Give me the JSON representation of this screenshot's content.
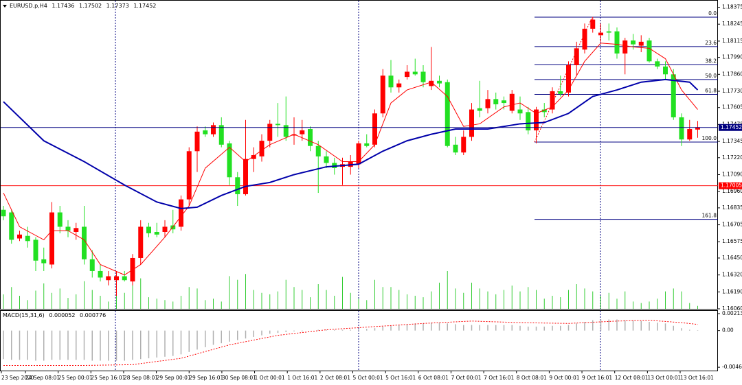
{
  "chart_data": {
    "type": "candlestick",
    "symbol": "EURUSD.p,H4",
    "bull_color": "#ff0000",
    "bear_color": "#22e022",
    "ylim": [
      1.1606,
      1.1842
    ],
    "yticks": [
      {
        "value": 1.18375,
        "label": "1.18375"
      },
      {
        "value": 1.18245,
        "label": "1.18245"
      },
      {
        "value": 1.18115,
        "label": "1.18115"
      },
      {
        "value": 1.1799,
        "label": "1.17990"
      },
      {
        "value": 1.1786,
        "label": "1.17860"
      },
      {
        "value": 1.1773,
        "label": "1.17730"
      },
      {
        "value": 1.17605,
        "label": "1.17605"
      },
      {
        "value": 1.17475,
        "label": "1.17475"
      },
      {
        "value": 1.17345,
        "label": "1.17345"
      },
      {
        "value": 1.1722,
        "label": "1.17220"
      },
      {
        "value": 1.1709,
        "label": "1.17090"
      },
      {
        "value": 1.1696,
        "label": "1.16960"
      },
      {
        "value": 1.16835,
        "label": "1.16835"
      },
      {
        "value": 1.16705,
        "label": "1.16705"
      },
      {
        "value": 1.16575,
        "label": "1.16575"
      },
      {
        "value": 1.1645,
        "label": "1.16450"
      },
      {
        "value": 1.1632,
        "label": "1.16320"
      },
      {
        "value": 1.1619,
        "label": "1.16190"
      },
      {
        "value": 1.1606,
        "label": "1.16060"
      }
    ],
    "open": [
      1.1682,
      1.168,
      1.166,
      1.1662,
      1.1659,
      1.1644,
      1.164,
      1.168,
      1.1669,
      1.1665,
      1.1669,
      1.1644,
      1.1635,
      1.1628,
      1.1628,
      1.1631,
      1.1627,
      1.1645,
      1.1669,
      1.1665,
      1.1665,
      1.167,
      1.1669,
      1.169,
      1.1727,
      1.1743,
      1.174,
      1.1747,
      1.1733,
      1.1707,
      1.1694,
      1.1721,
      1.1723,
      1.1735,
      1.1748,
      1.1747,
      1.1739,
      1.174,
      1.1744,
      1.1731,
      1.1723,
      1.1718,
      1.1715,
      1.1715,
      1.1717,
      1.1733,
      1.1732,
      1.1756,
      1.1785,
      1.1776,
      1.1784,
      1.1788,
      1.1788,
      1.1777,
      1.1781,
      1.178,
      1.1732,
      1.1726,
      1.1738,
      1.176,
      1.176,
      1.1767,
      1.1766,
      1.1758,
      1.1759,
      1.1757,
      1.1743,
      1.1759,
      1.1759,
      1.1773,
      1.1772,
      1.1793,
      1.1805,
      1.1821,
      1.1816,
      1.1819,
      1.1819,
      1.1802,
      1.1812,
      1.1808,
      1.1812,
      1.1796,
      1.1792,
      1.1786,
      1.1753,
      1.1736,
      1.17436
    ],
    "high": [
      1.1685,
      1.1682,
      1.1666,
      1.1669,
      1.1661,
      1.1653,
      1.1688,
      1.1685,
      1.1674,
      1.1672,
      1.1685,
      1.1651,
      1.164,
      1.1635,
      1.1635,
      1.1635,
      1.1648,
      1.1674,
      1.1672,
      1.1672,
      1.1674,
      1.1682,
      1.1693,
      1.173,
      1.1746,
      1.1746,
      1.1749,
      1.1753,
      1.1735,
      1.1711,
      1.1751,
      1.173,
      1.174,
      1.1751,
      1.1764,
      1.1769,
      1.1753,
      1.1751,
      1.1746,
      1.1735,
      1.1727,
      1.1722,
      1.1722,
      1.1724,
      1.1735,
      1.174,
      1.1759,
      1.179,
      1.1797,
      1.1782,
      1.1793,
      1.1798,
      1.1793,
      1.1807,
      1.1785,
      1.1782,
      1.1738,
      1.1743,
      1.1764,
      1.1781,
      1.1774,
      1.1772,
      1.1769,
      1.1774,
      1.1769,
      1.1761,
      1.1761,
      1.1764,
      1.1776,
      1.1785,
      1.1796,
      1.1811,
      1.1825,
      1.183,
      1.1825,
      1.1825,
      1.1822,
      1.1814,
      1.1817,
      1.1816,
      1.1814,
      1.1798,
      1.1796,
      1.179,
      1.1756,
      1.1751,
      1.17502
    ],
    "low": [
      1.1674,
      1.1656,
      1.1658,
      1.1653,
      1.1635,
      1.1635,
      1.1637,
      1.1664,
      1.1661,
      1.1659,
      1.164,
      1.163,
      1.1627,
      1.1624,
      1.1616,
      1.1627,
      1.1624,
      1.164,
      1.1661,
      1.1661,
      1.1661,
      1.1664,
      1.1666,
      1.1685,
      1.1711,
      1.1738,
      1.1738,
      1.173,
      1.1701,
      1.1685,
      1.1693,
      1.1711,
      1.1719,
      1.173,
      1.1738,
      1.1735,
      1.1732,
      1.1735,
      1.1727,
      1.1695,
      1.1714,
      1.1709,
      1.1701,
      1.1709,
      1.1714,
      1.173,
      1.173,
      1.1753,
      1.1772,
      1.1772,
      1.1782,
      1.1785,
      1.1776,
      1.1774,
      1.1776,
      1.173,
      1.1724,
      1.1724,
      1.1735,
      1.1753,
      1.1756,
      1.1759,
      1.1759,
      1.1756,
      1.1751,
      1.174,
      1.1733,
      1.1753,
      1.1756,
      1.1769,
      1.1769,
      1.1785,
      1.1802,
      1.1818,
      1.1811,
      1.1812,
      1.1798,
      1.1786,
      1.1805,
      1.1803,
      1.1795,
      1.179,
      1.1782,
      1.1751,
      1.1731,
      1.1735,
      1.17373
    ],
    "close": [
      1.1677,
      1.1659,
      1.1663,
      1.1658,
      1.1643,
      1.1641,
      1.168,
      1.1669,
      1.1666,
      1.1668,
      1.1644,
      1.1635,
      1.163,
      1.1631,
      1.1631,
      1.1628,
      1.1645,
      1.1669,
      1.1664,
      1.1663,
      1.1669,
      1.1667,
      1.169,
      1.1727,
      1.1742,
      1.174,
      1.1747,
      1.1732,
      1.1707,
      1.1694,
      1.1721,
      1.1724,
      1.1735,
      1.1748,
      1.1747,
      1.1738,
      1.174,
      1.1743,
      1.1731,
      1.1723,
      1.1718,
      1.1714,
      1.1717,
      1.1719,
      1.1733,
      1.1731,
      1.1756,
      1.1785,
      1.1776,
      1.1779,
      1.1788,
      1.1786,
      1.178,
      1.1781,
      1.1779,
      1.1731,
      1.1726,
      1.1738,
      1.1759,
      1.1758,
      1.1767,
      1.1763,
      1.1764,
      1.1771,
      1.1756,
      1.1743,
      1.1759,
      1.1757,
      1.1773,
      1.1771,
      1.1793,
      1.1806,
      1.1821,
      1.1828,
      1.1818,
      1.1818,
      1.1802,
      1.1812,
      1.1809,
      1.1811,
      1.1796,
      1.1792,
      1.1786,
      1.1753,
      1.1736,
      1.1744,
      1.17452
    ],
    "volumes": [
      20,
      30,
      18,
      12,
      25,
      35,
      22,
      28,
      15,
      20,
      38,
      26,
      18,
      10,
      40,
      22,
      35,
      42,
      16,
      14,
      12,
      10,
      18,
      30,
      28,
      12,
      14,
      10,
      45,
      40,
      48,
      26,
      22,
      20,
      24,
      40,
      30,
      26,
      16,
      34,
      26,
      18,
      44,
      22,
      14,
      12,
      40,
      30,
      30,
      26,
      20,
      18,
      16,
      24,
      36,
      52,
      28,
      22,
      36,
      28,
      24,
      20,
      26,
      32,
      24,
      30,
      26,
      14,
      18,
      16,
      26,
      34,
      28,
      24,
      18,
      22,
      14,
      24,
      10,
      8,
      10,
      14,
      24,
      28,
      24,
      8,
      4
    ],
    "volume_color": "#33cc33",
    "ma_series": [
      {
        "color": "#ff0000",
        "x": [
          0,
          2,
          5,
          6,
          8,
          10,
          12,
          15,
          17,
          20,
          23,
          25,
          28,
          30,
          33,
          36,
          39,
          42,
          44,
          46,
          48,
          50,
          53,
          55,
          57,
          59,
          62,
          64,
          66,
          68,
          70,
          72,
          74,
          76,
          78,
          80,
          82,
          84,
          86
        ],
        "values": [
          1.1695,
          1.1669,
          1.1659,
          1.1666,
          1.1666,
          1.1659,
          1.164,
          1.1632,
          1.164,
          1.1661,
          1.1685,
          1.1714,
          1.173,
          1.1719,
          1.1732,
          1.174,
          1.1732,
          1.1719,
          1.1719,
          1.1732,
          1.1764,
          1.1774,
          1.178,
          1.1769,
          1.1746,
          1.1748,
          1.1761,
          1.1764,
          1.1756,
          1.1761,
          1.1774,
          1.1796,
          1.181,
          1.1809,
          1.1807,
          1.1806,
          1.1798,
          1.1774,
          1.1759
        ]
      },
      {
        "color": "#0000aa",
        "x": [
          0,
          5,
          10,
          15,
          19,
          22,
          24,
          27,
          30,
          33,
          36,
          40,
          44,
          47,
          50,
          53,
          56,
          60,
          64,
          67,
          70,
          73,
          76,
          79,
          82,
          85,
          86
        ],
        "values": [
          1.1765,
          1.1735,
          1.1719,
          1.1701,
          1.1688,
          1.1683,
          1.1684,
          1.1693,
          1.17,
          1.1703,
          1.1709,
          1.1715,
          1.1717,
          1.1727,
          1.1735,
          1.174,
          1.1744,
          1.1744,
          1.1748,
          1.1749,
          1.1756,
          1.1769,
          1.1774,
          1.178,
          1.1782,
          1.178,
          1.1774
        ]
      }
    ],
    "level_line": 1.17005,
    "level_color": "#ff0000",
    "fib_color": "#000080",
    "fib_levels": [
      {
        "value": 0,
        "label": "0.0"
      },
      23.6,
      38.2,
      {
        "value": 50,
        "label": "50.0"
      },
      61.8,
      {
        "value": 100,
        "label": "100.0"
      },
      161.8
    ],
    "fib_prices": [
      1.18299,
      1.18073,
      1.17933,
      1.1782,
      1.17706,
      1.1734,
      1.16747
    ],
    "macd": {
      "label": "MACD(15,31,6)",
      "ylim": [
        -0.00505,
        0.00257
      ],
      "yticks": [
        0.002137,
        {
          "value": 0,
          "label": "0.00"
        },
        -0.004628
      ],
      "histogram": [
        -0.0036,
        -0.0037,
        -0.0037,
        -0.0037,
        -0.0038,
        -0.0038,
        -0.0037,
        -0.0037,
        -0.0037,
        -0.0037,
        -0.0037,
        -0.0038,
        -0.0038,
        -0.0038,
        -0.0038,
        -0.0038,
        -0.0037,
        -0.0036,
        -0.0035,
        -0.0034,
        -0.0033,
        -0.0032,
        -0.003,
        -0.0027,
        -0.0024,
        -0.0021,
        -0.0018,
        -0.0016,
        -0.0014,
        -0.0012,
        -0.001,
        -0.0008,
        -0.0006,
        -0.0004,
        -0.0003,
        -0.0002,
        -0.0001,
        -0.0001,
        0,
        0.0001,
        0.0001,
        0.0001,
        0.0001,
        0.0001,
        0.0002,
        0.0002,
        0.0003,
        0.0005,
        0.0006,
        0.0007,
        0.0008,
        0.0009,
        0.0009,
        0.001,
        0.001,
        0.0009,
        0.0008,
        0.0007,
        0.0007,
        0.0007,
        0.0007,
        0.0007,
        0.0007,
        0.0007,
        0.0006,
        0.0005,
        0.0005,
        0.0005,
        0.0006,
        0.0006,
        0.0007,
        0.0009,
        0.0011,
        0.0013,
        0.0014,
        0.0014,
        0.0014,
        0.0013,
        0.0013,
        0.0012,
        0.0011,
        0.001,
        0.0009,
        0.0006,
        0.0003,
        0.0001,
        5.2e-05
      ],
      "histogram_color": "#b0b0b0",
      "signal": {
        "color": "#ff0000",
        "x": [
          0,
          10,
          16,
          22,
          28,
          34,
          40,
          46,
          52,
          58,
          64,
          70,
          76,
          80,
          84,
          86
        ],
        "values": [
          -0.0044,
          -0.0044,
          -0.0043,
          -0.0035,
          -0.0018,
          -0.0006,
          0.0001,
          0.0005,
          0.0009,
          0.0012,
          0.001,
          0.0009,
          0.0012,
          0.0013,
          0.001,
          0.000776
        ]
      }
    },
    "time_labels": [
      "23 Sep 2020",
      "24 Sep 08:01",
      "25 Sep 00:01",
      "25 Sep 16:01",
      "28 Sep 08:01",
      "29 Sep 00:01",
      "29 Sep 16:01",
      "30 Sep 08:01",
      "1 Oct 00:01",
      "1 Oct 16:01",
      "2 Oct 08:01",
      "5 Oct 00:01",
      "5 Oct 16:01",
      "6 Oct 08:01",
      "7 Oct 00:01",
      "7 Oct 16:01",
      "8 Oct 08:01",
      "9 Oct 00:01",
      "9 Oct 16:01",
      "12 Oct 08:01",
      "13 Oct 00:01",
      "13 Oct 16:01"
    ]
  }
}
